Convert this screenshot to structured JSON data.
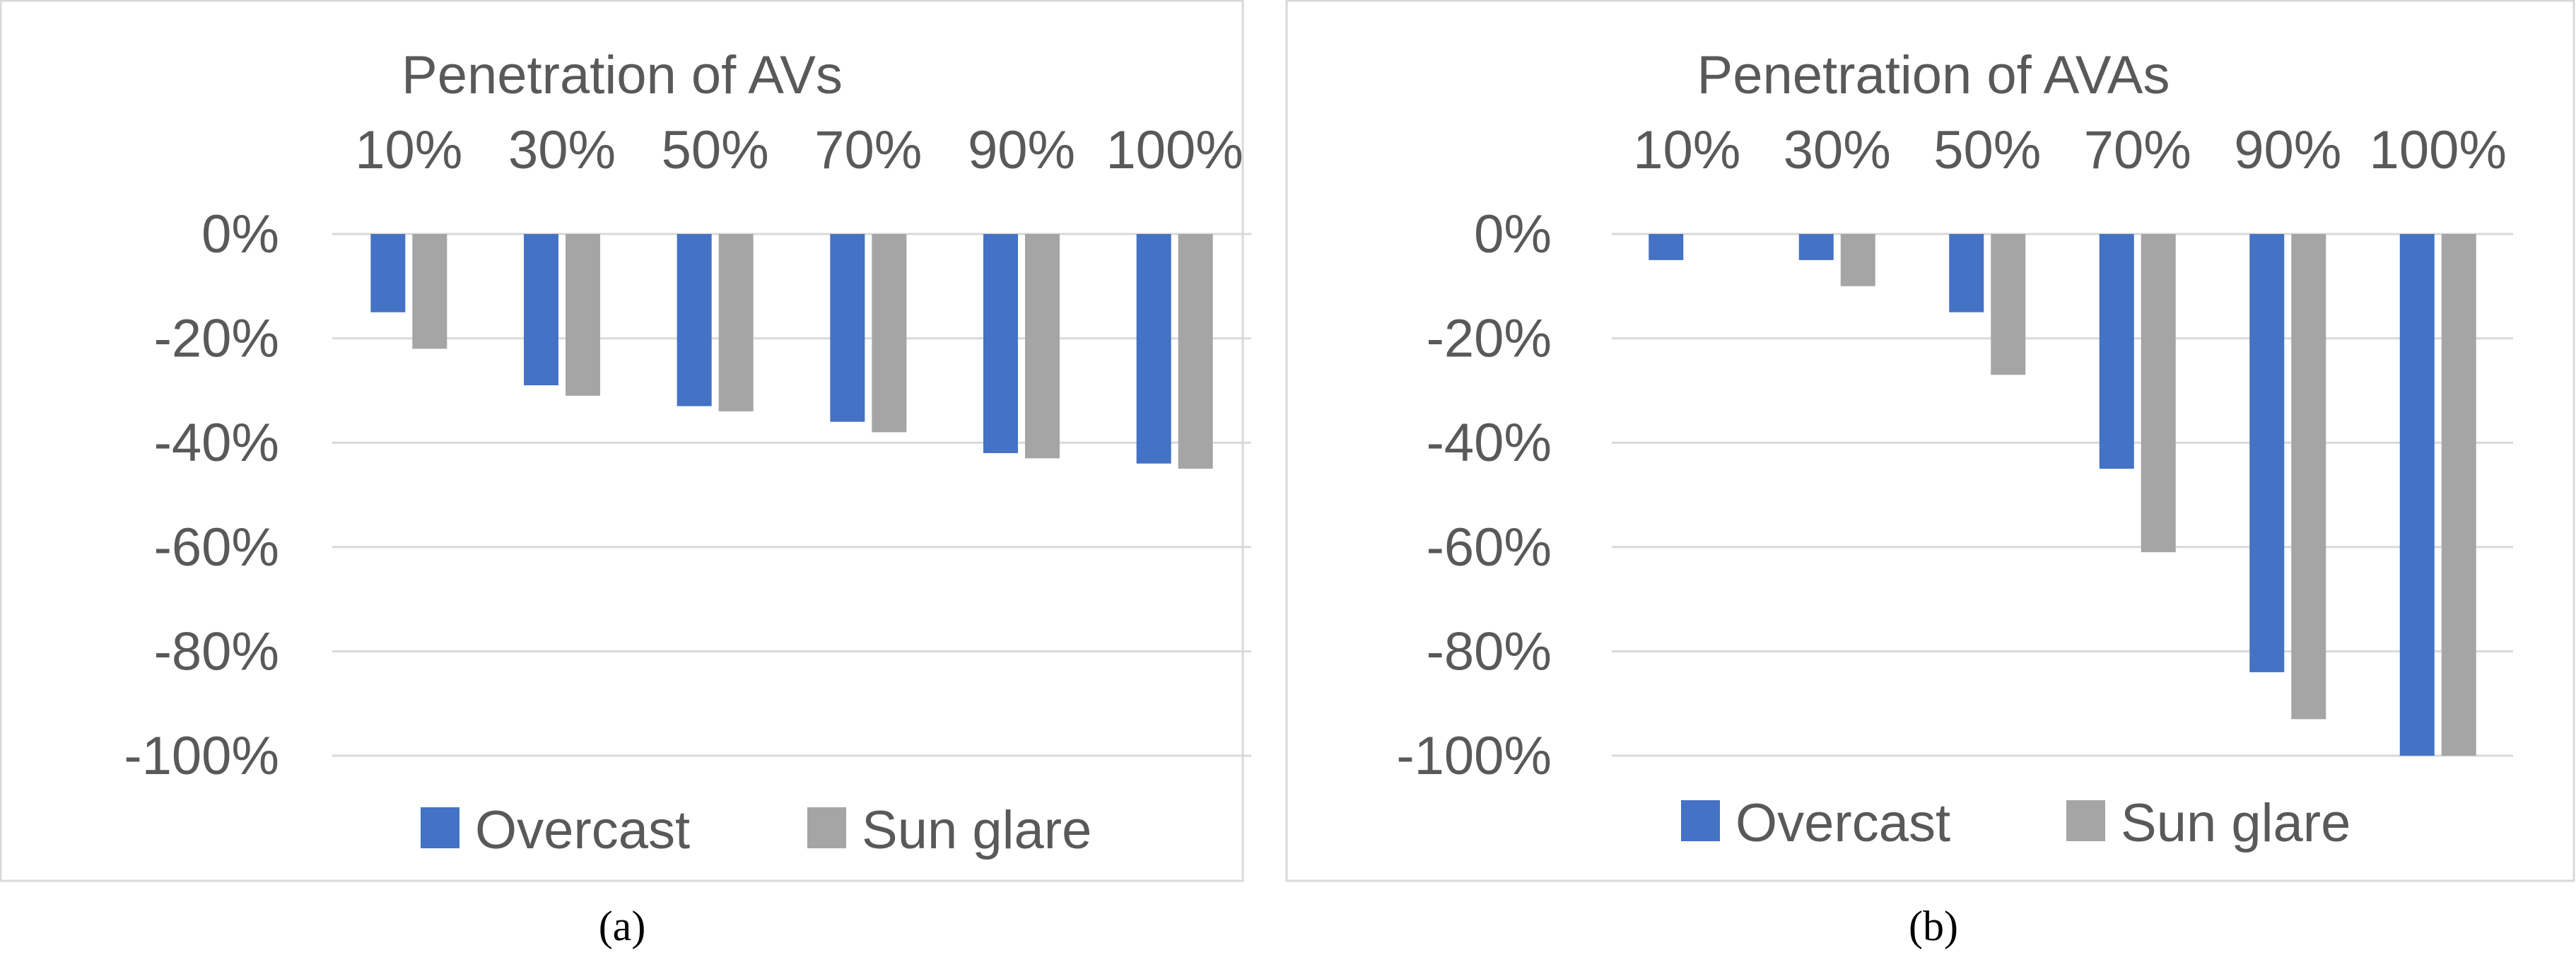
{
  "colors": {
    "overcast": "#4472C4",
    "sun_glare": "#A5A5A5",
    "gridline": "#D9D9D9",
    "frame": "#D9D9D9",
    "text": "#595959"
  },
  "chart_data": [
    {
      "type": "bar",
      "panel_label": "(a)",
      "title": "Penetration of AVs",
      "categories": [
        "10%",
        "30%",
        "50%",
        "70%",
        "90%",
        "100%"
      ],
      "series": [
        {
          "name": "Overcast",
          "values": [
            -15,
            -29,
            -33,
            -36,
            -42,
            -44
          ]
        },
        {
          "name": "Sun glare",
          "values": [
            -22,
            -31,
            -34,
            -38,
            -43,
            -45
          ]
        }
      ],
      "ylim": [
        -100,
        0
      ],
      "yticks": [
        0,
        -20,
        -40,
        -60,
        -80,
        -100
      ],
      "ytick_labels": [
        "0%",
        "-20%",
        "-40%",
        "-60%",
        "-80%",
        "-100%"
      ],
      "category_axis_position": "top",
      "grid": true,
      "legend": "bottom"
    },
    {
      "type": "bar",
      "panel_label": "(b)",
      "title": "Penetration of AVAs",
      "categories": [
        "10%",
        "30%",
        "50%",
        "70%",
        "90%",
        "100%"
      ],
      "series": [
        {
          "name": "Overcast",
          "values": [
            -5,
            -5,
            -15,
            -45,
            -84,
            -100
          ]
        },
        {
          "name": "Sun glare",
          "values": [
            0,
            -10,
            -27,
            -61,
            -93,
            -100
          ]
        }
      ],
      "ylim": [
        -100,
        0
      ],
      "yticks": [
        0,
        -20,
        -40,
        -60,
        -80,
        -100
      ],
      "ytick_labels": [
        "0%",
        "-20%",
        "-40%",
        "-60%",
        "-80%",
        "-100%"
      ],
      "category_axis_position": "top",
      "grid": true,
      "legend": "bottom"
    }
  ]
}
